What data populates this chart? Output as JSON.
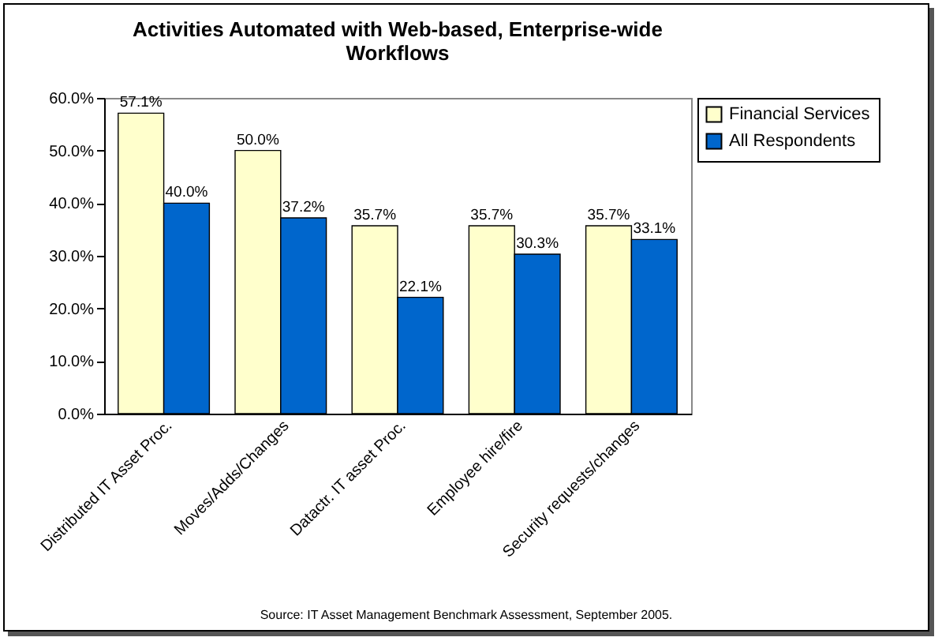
{
  "chart_data": {
    "type": "bar",
    "title": "Activities Automated with Web-based, Enterprise-wide Workflows",
    "categories": [
      "Distributed IT Asset Proc.",
      "Moves/Adds/Changes",
      "Datactr. IT asset Proc.",
      "Employee hire/fire",
      "Security requests/changes"
    ],
    "series": [
      {
        "name": "Financial Services",
        "color": "#ffffcc",
        "values": [
          57.1,
          50.0,
          35.7,
          35.7,
          35.7
        ],
        "value_labels": [
          "57.1%",
          "50.0%",
          "35.7%",
          "35.7%",
          "35.7%"
        ]
      },
      {
        "name": "All Respondents",
        "color": "#0066cc",
        "values": [
          40.0,
          37.2,
          22.1,
          30.3,
          33.1
        ],
        "value_labels": [
          "40.0%",
          "37.2%",
          "22.1%",
          "30.3%",
          "33.1%"
        ]
      }
    ],
    "ylim": [
      0,
      60
    ],
    "yticks": [
      {
        "value": 0,
        "label": "0.0%"
      },
      {
        "value": 10,
        "label": "10.0%"
      },
      {
        "value": 20,
        "label": "20.0%"
      },
      {
        "value": 30,
        "label": "30.0%"
      },
      {
        "value": 40,
        "label": "40.0%"
      },
      {
        "value": 50,
        "label": "50.0%"
      },
      {
        "value": 60,
        "label": "60.0%"
      }
    ],
    "legend": "right",
    "annotations": [
      "Source:  IT Asset Management Benchmark Assessment, September 2005."
    ]
  }
}
